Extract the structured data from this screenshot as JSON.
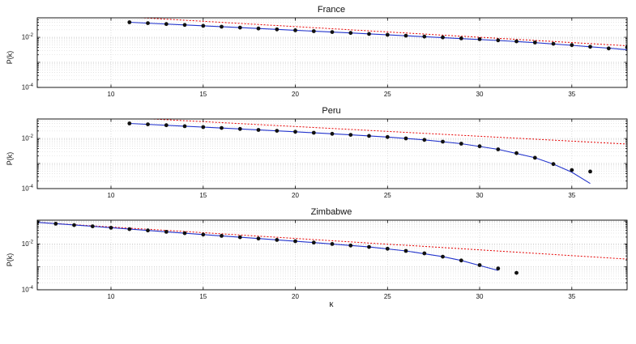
{
  "figure": {
    "description": "Three stacked semi-log degree distribution plots P(k) vs k with data points, blue fits, and red dotted power-trend lines"
  },
  "chart_data": [
    {
      "type": "scatter",
      "title": "France",
      "xlabel": "",
      "ylabel": "P(k)",
      "xlim": [
        6,
        38
      ],
      "ylim": [
        0.0001,
        0.06
      ],
      "xticks": [
        10,
        15,
        20,
        25,
        30,
        35
      ],
      "ytick_exponents": [
        -2,
        -4
      ],
      "grid": true,
      "legend": "none",
      "colors": {
        "points": "#111111",
        "fit": "#2233cc",
        "trend": "#e60000"
      },
      "points": [
        [
          11,
          0.04
        ],
        [
          12,
          0.0368
        ],
        [
          13,
          0.0339
        ],
        [
          14,
          0.0312
        ],
        [
          15,
          0.0288
        ],
        [
          16,
          0.0265
        ],
        [
          17,
          0.0244
        ],
        [
          18,
          0.0225
        ],
        [
          19,
          0.0207
        ],
        [
          20,
          0.0191
        ],
        [
          21,
          0.0176
        ],
        [
          22,
          0.0162
        ],
        [
          23,
          0.0149
        ],
        [
          24,
          0.0137
        ],
        [
          25,
          0.0126
        ],
        [
          26,
          0.0116
        ],
        [
          27,
          0.0107
        ],
        [
          28,
          0.0099
        ],
        [
          29,
          0.0091
        ],
        [
          30,
          0.0084
        ],
        [
          31,
          0.0076
        ],
        [
          32,
          0.0069
        ],
        [
          33,
          0.0062
        ],
        [
          34,
          0.0055
        ],
        [
          35,
          0.0049
        ],
        [
          36,
          0.0042
        ],
        [
          37,
          0.0036
        ],
        [
          38,
          0.004
        ]
      ],
      "fit": [
        [
          11,
          0.04
        ],
        [
          14,
          0.0312
        ],
        [
          17,
          0.0244
        ],
        [
          20,
          0.0191
        ],
        [
          23,
          0.0149
        ],
        [
          26,
          0.0115
        ],
        [
          29,
          0.0089
        ],
        [
          31,
          0.0075
        ],
        [
          33,
          0.0061
        ],
        [
          35,
          0.0048
        ],
        [
          36,
          0.0042
        ],
        [
          37,
          0.0037
        ],
        [
          38,
          0.0032
        ]
      ],
      "trend": {
        "x": [
          6,
          38
        ],
        "y": [
          0.105,
          0.0046
        ]
      }
    },
    {
      "type": "scatter",
      "title": "Peru",
      "xlabel": "",
      "ylabel": "P(k)",
      "xlim": [
        6,
        38
      ],
      "ylim": [
        0.0001,
        0.06
      ],
      "xticks": [
        10,
        15,
        20,
        25,
        30,
        35
      ],
      "ytick_exponents": [
        -2,
        -4
      ],
      "grid": true,
      "legend": "none",
      "colors": {
        "points": "#111111",
        "fit": "#2233cc",
        "trend": "#e60000"
      },
      "points": [
        [
          11,
          0.04
        ],
        [
          12,
          0.0368
        ],
        [
          13,
          0.0338
        ],
        [
          14,
          0.031
        ],
        [
          15,
          0.0285
        ],
        [
          16,
          0.0262
        ],
        [
          17,
          0.024
        ],
        [
          18,
          0.022
        ],
        [
          19,
          0.0202
        ],
        [
          20,
          0.0185
        ],
        [
          21,
          0.0169
        ],
        [
          22,
          0.0154
        ],
        [
          23,
          0.014
        ],
        [
          24,
          0.0127
        ],
        [
          25,
          0.0114
        ],
        [
          26,
          0.0101
        ],
        [
          27,
          0.0088
        ],
        [
          28,
          0.0075
        ],
        [
          29,
          0.0062
        ],
        [
          30,
          0.0049
        ],
        [
          31,
          0.0037
        ],
        [
          32,
          0.0026
        ],
        [
          33,
          0.0017
        ],
        [
          34,
          0.00095
        ],
        [
          35,
          0.00055
        ],
        [
          36,
          0.00048
        ]
      ],
      "fit": [
        [
          11,
          0.04
        ],
        [
          14,
          0.031
        ],
        [
          17,
          0.024
        ],
        [
          20,
          0.0185
        ],
        [
          23,
          0.014
        ],
        [
          25,
          0.0114
        ],
        [
          27,
          0.0088
        ],
        [
          29,
          0.0062
        ],
        [
          31,
          0.0037
        ],
        [
          33,
          0.0017
        ],
        [
          34,
          0.00095
        ],
        [
          35,
          0.00045
        ],
        [
          36,
          0.00016
        ]
      ],
      "trend": {
        "x": [
          6,
          38
        ],
        "y": [
          0.105,
          0.006
        ]
      }
    },
    {
      "type": "scatter",
      "title": "Zimbabwe",
      "xlabel": "k",
      "ylabel": "P(k)",
      "xlim": [
        6,
        38
      ],
      "ylim": [
        0.0001,
        0.11
      ],
      "xticks": [
        10,
        15,
        20,
        25,
        30,
        35
      ],
      "ytick_exponents": [
        -2,
        -4
      ],
      "grid": true,
      "legend": "none",
      "colors": {
        "points": "#111111",
        "fit": "#2233cc",
        "trend": "#e60000"
      },
      "points": [
        [
          6,
          0.088
        ],
        [
          7,
          0.077
        ],
        [
          8,
          0.067
        ],
        [
          9,
          0.059
        ],
        [
          10,
          0.051
        ],
        [
          11,
          0.0445
        ],
        [
          12,
          0.039
        ],
        [
          13,
          0.034
        ],
        [
          14,
          0.0297
        ],
        [
          15,
          0.0259
        ],
        [
          16,
          0.0226
        ],
        [
          17,
          0.0198
        ],
        [
          18,
          0.0173
        ],
        [
          19,
          0.0151
        ],
        [
          20,
          0.0132
        ],
        [
          21,
          0.0115
        ],
        [
          22,
          0.01
        ],
        [
          23,
          0.0086
        ],
        [
          24,
          0.0074
        ],
        [
          25,
          0.0062
        ],
        [
          26,
          0.005
        ],
        [
          27,
          0.0039
        ],
        [
          28,
          0.0028
        ],
        [
          29,
          0.0019
        ],
        [
          30,
          0.0012
        ],
        [
          31,
          0.00085
        ],
        [
          32,
          0.00055
        ]
      ],
      "fit": [
        [
          6,
          0.088
        ],
        [
          9,
          0.059
        ],
        [
          12,
          0.039
        ],
        [
          15,
          0.0259
        ],
        [
          18,
          0.0173
        ],
        [
          21,
          0.0115
        ],
        [
          24,
          0.0074
        ],
        [
          26,
          0.005
        ],
        [
          28,
          0.0028
        ],
        [
          29,
          0.0019
        ],
        [
          30,
          0.00115
        ],
        [
          31,
          0.0007
        ]
      ],
      "trend": {
        "x": [
          6,
          38
        ],
        "y": [
          0.088,
          0.0022
        ]
      }
    }
  ]
}
